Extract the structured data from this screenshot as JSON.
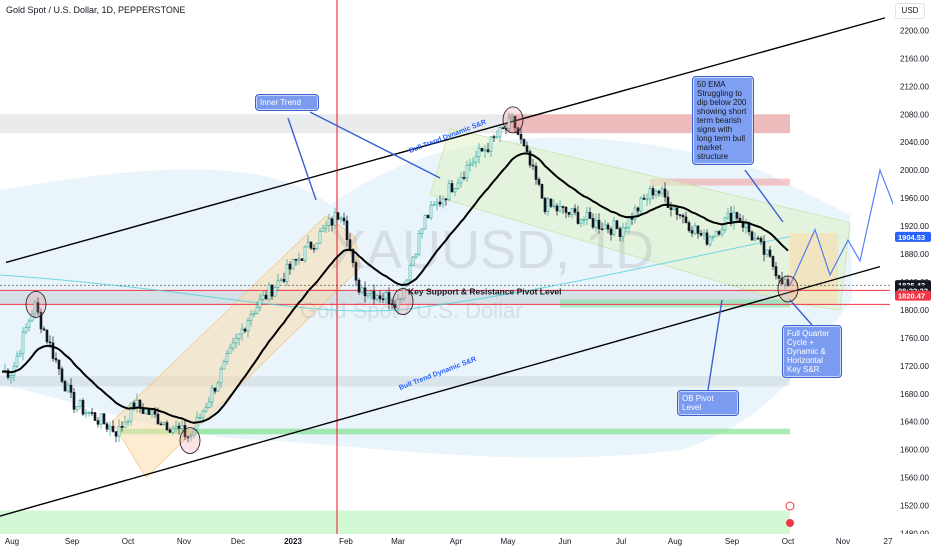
{
  "header": {
    "title": "Gold Spot / U.S. Dollar, 1D, PEPPERSTONE",
    "currency": "USD"
  },
  "watermark": {
    "symbol": "XAUUSD, 1D",
    "subtitle": "Gold Spot / U.S. Dollar"
  },
  "price_axis": {
    "ticks": [
      2200,
      2160,
      2120,
      2080,
      2040,
      2000,
      1960,
      1920,
      1880,
      1840,
      1800,
      1760,
      1720,
      1680,
      1640,
      1600,
      1560,
      1520,
      1480
    ],
    "labels": [
      "2200.00",
      "2160.00",
      "2120.00",
      "2080.00",
      "2040.00",
      "2000.00",
      "1960.00",
      "1920.00",
      "1880.00",
      "1840.00",
      "1800.00",
      "1760.00",
      "1720.00",
      "1680.00",
      "1640.00",
      "1600.00",
      "1560.00",
      "1520.00",
      "1480.00"
    ],
    "badges": [
      {
        "label": "1904.53",
        "price": 1904.53,
        "color": "#2962ff"
      },
      {
        "label": "1835.43",
        "price": 1835.43,
        "color": "#131722"
      },
      {
        "label": "08:22:23",
        "price": 1828,
        "color": "#131722"
      },
      {
        "label": "1820.47",
        "price": 1820.47,
        "color": "#f23645"
      }
    ]
  },
  "time_axis": {
    "labels": [
      "Aug",
      "Sep",
      "Oct",
      "Nov",
      "Dec",
      "2023",
      "Feb",
      "Mar",
      "Apr",
      "May",
      "Jun",
      "Jul",
      "Aug",
      "Sep",
      "Oct",
      "Nov",
      "27"
    ]
  },
  "annotations": {
    "inner_trend": "Inner Trend",
    "ema_note": "50 EMA Struggling to dip below 200 showing short term bearish signs with long term bull market structure",
    "quarter_note": "Full Quarter Cycle + Dynamic & Horizontal Key S&R",
    "ob_pivot": "OB Pivot Level",
    "key_level": "Key Support & Resistance Pivot Level",
    "bull_trend_top": "Bull Trend Dynamic S&R",
    "bull_trend_bottom": "Bull Trend Dynamic S&R"
  },
  "chart_data": {
    "type": "candlestick",
    "title": "Gold Spot / U.S. Dollar, 1D, PEPPERSTONE",
    "symbol": "XAUUSD",
    "timeframe": "1D",
    "ylim": [
      1465,
      2235
    ],
    "y_scale": "linear",
    "grid": false,
    "last_price": 1835.43,
    "close_series_approx": {
      "dates": [
        "Aug 2022",
        "Sep 2022",
        "Oct 2022",
        "Nov 2022",
        "Dec 2022",
        "Jan 2023",
        "Feb 2023",
        "Mar 2023",
        "Apr 2023",
        "May 2023",
        "Jun 2023",
        "Jul 2023",
        "Aug 2023",
        "Sep 2023",
        "Oct 2023"
      ],
      "values": [
        1765,
        1710,
        1660,
        1640,
        1800,
        1925,
        1830,
        1830,
        1990,
        2030,
        1930,
        1950,
        1920,
        1930,
        1830
      ]
    },
    "anchors": [
      {
        "label": "Aug 2022",
        "price": 1712
      },
      {
        "label": "Aug 2022 high",
        "price": 1808
      },
      {
        "label": "Sep 2022",
        "price": 1668
      },
      {
        "label": "late Sep 2022",
        "price": 1625
      },
      {
        "label": "Oct 2022",
        "price": 1665
      },
      {
        "label": "early Nov 2022",
        "price": 1618
      },
      {
        "label": "Dec 2022",
        "price": 1795
      },
      {
        "label": "late Jan 2023",
        "price": 1945
      },
      {
        "label": "Feb 2023",
        "price": 1835
      },
      {
        "label": "early Mar 2023",
        "price": 1812
      },
      {
        "label": "mid Mar 2023",
        "price": 1930
      },
      {
        "label": "Apr 2023",
        "price": 2010
      },
      {
        "label": "early May 2023",
        "price": 2070
      },
      {
        "label": "late May 2023",
        "price": 1950
      },
      {
        "label": "Jun 2023",
        "price": 1925
      },
      {
        "label": "late Jun 2023",
        "price": 1915
      },
      {
        "label": "Jul 2023",
        "price": 1975
      },
      {
        "label": "Aug 2023",
        "price": 1900
      },
      {
        "label": "Sep 2023",
        "price": 1940
      },
      {
        "label": "late Sep 2023",
        "price": 1860
      },
      {
        "label": "Oct 2023",
        "price": 1828
      }
    ],
    "projection": [
      {
        "label": "Oct 2023",
        "price": 1835
      },
      {
        "label": "mid Oct 2023",
        "price": 1915
      },
      {
        "label": "late Oct 2023",
        "price": 1850
      },
      {
        "label": "Nov 2023",
        "price": 1900
      },
      {
        "label": "Nov 2023 b",
        "price": 1870
      },
      {
        "label": "late Nov 2023",
        "price": 2000
      },
      {
        "label": "Dec 2023",
        "price": 1945
      }
    ],
    "levels": {
      "key_pivot": 1828,
      "key_pivot_lower": 1808,
      "ob_pivot_zone": [
        1630,
        1622
      ],
      "supply_zone": [
        2080,
        2053
      ],
      "minor_supply": [
        1988,
        1978
      ],
      "bottom_zone": [
        1513,
        1465
      ]
    },
    "trendlines": {
      "upper_channel": [
        {
          "label": "Aug 2022",
          "price": 1868
        },
        {
          "label": "Nov 2023",
          "price": 2218
        }
      ],
      "lower_channel": [
        {
          "label": "Aug 2022",
          "price": 1505
        },
        {
          "label": "Nov 2023",
          "price": 1862
        }
      ]
    },
    "vertical_marker": "Jan 2023"
  }
}
